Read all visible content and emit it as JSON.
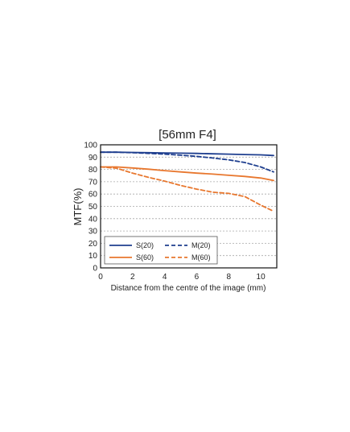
{
  "chart_data": {
    "type": "line",
    "title": "[56mm F4]",
    "xlabel": "Distance from the centre of the image (mm)",
    "ylabel": "MTF(%)",
    "xlim": [
      0,
      11
    ],
    "ylim": [
      0,
      100
    ],
    "xticks": [
      0,
      2,
      4,
      6,
      8,
      10
    ],
    "yticks": [
      0,
      10,
      20,
      30,
      40,
      50,
      60,
      70,
      80,
      90,
      100
    ],
    "grid": "horizontal-dashed",
    "legend_position": "bottom-left",
    "series": [
      {
        "name": "S(20)",
        "color": "#1f3f8f",
        "dash": "solid",
        "x": [
          0,
          1,
          2,
          3,
          4,
          5,
          6,
          7,
          8,
          9,
          10,
          10.8
        ],
        "y": [
          94,
          94,
          93.8,
          93.6,
          93.4,
          93.2,
          93,
          92.7,
          92.4,
          92.1,
          91.8,
          91.3
        ]
      },
      {
        "name": "M(20)",
        "color": "#1f3f8f",
        "dash": "dashed",
        "x": [
          0,
          1,
          2,
          3,
          4,
          5,
          6,
          7,
          8,
          9,
          10,
          10.8
        ],
        "y": [
          94,
          94,
          93.6,
          93,
          92.4,
          91.6,
          90.6,
          89.3,
          87.8,
          85.6,
          82,
          78
        ]
      },
      {
        "name": "S(60)",
        "color": "#e8772e",
        "dash": "solid",
        "x": [
          0,
          1,
          2,
          3,
          4,
          5,
          6,
          7,
          8,
          9,
          10,
          10.8
        ],
        "y": [
          82,
          82,
          81.2,
          80.2,
          79,
          78,
          77,
          76.2,
          75.2,
          74.3,
          73,
          71
        ]
      },
      {
        "name": "M(60)",
        "color": "#e8772e",
        "dash": "dashed",
        "x": [
          0,
          1,
          2,
          3,
          4,
          5,
          6,
          7,
          8,
          9,
          10,
          10.8
        ],
        "y": [
          82,
          81,
          77,
          73.5,
          70.5,
          67,
          64,
          61.5,
          60.5,
          58,
          51,
          46
        ]
      }
    ]
  }
}
